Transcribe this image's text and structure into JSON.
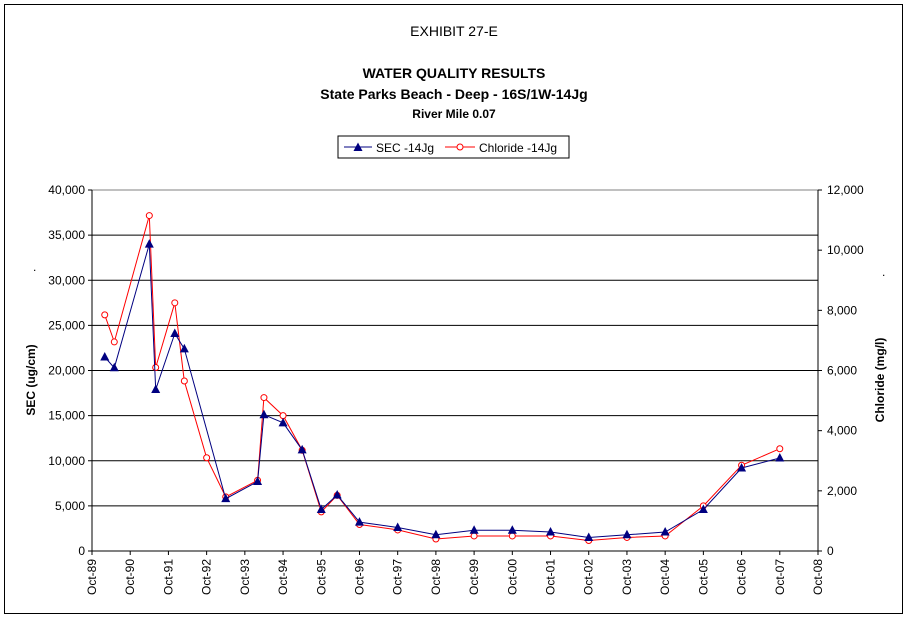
{
  "chart_data": {
    "type": "line",
    "exhibit": "EXHIBIT 27-E",
    "title": "WATER QUALITY RESULTS",
    "subtitle": "State Parks Beach - Deep - 16S/1W-14Jg",
    "subtitle2": "River Mile 0.07",
    "ylabel": "SEC (ug/cm)",
    "y2label": "Chloride (mg/l)",
    "ylabel_mark": ".",
    "y2label_mark": ".",
    "ylim": [
      0,
      40000
    ],
    "y2lim": [
      0,
      12000
    ],
    "xlim": [
      "1989-10",
      "2008-10"
    ],
    "grid": true,
    "legend_position": "top-center",
    "colors": {
      "sec": "#000080",
      "chloride": "#ff0000"
    },
    "x_tick_labels": [
      "Oct-89",
      "Oct-90",
      "Oct-91",
      "Oct-92",
      "Oct-93",
      "Oct-94",
      "Oct-95",
      "Oct-96",
      "Oct-97",
      "Oct-98",
      "Oct-99",
      "Oct-00",
      "Oct-01",
      "Oct-02",
      "Oct-03",
      "Oct-04",
      "Oct-05",
      "Oct-06",
      "Oct-07",
      "Oct-08"
    ],
    "y_tick_labels": [
      "0",
      "5,000",
      "10,000",
      "15,000",
      "20,000",
      "25,000",
      "30,000",
      "35,000",
      "40,000"
    ],
    "y2_tick_labels": [
      "0",
      "2,000",
      "4,000",
      "6,000",
      "8,000",
      "10,000",
      "12,000"
    ],
    "series": [
      {
        "name": "SEC -14Jg",
        "axis": "left",
        "marker": "triangle",
        "x": [
          "1990-02",
          "1990-05",
          "1991-04",
          "1991-06",
          "1991-12",
          "1992-03",
          "1993-04",
          "1994-02",
          "1994-04",
          "1994-10",
          "1995-04",
          "1995-10",
          "1996-03",
          "1996-10",
          "1997-10",
          "1998-10",
          "1999-10",
          "2000-10",
          "2001-10",
          "2002-10",
          "2003-10",
          "2004-10",
          "2005-10",
          "2006-10",
          "2007-10"
        ],
        "values": [
          21500,
          20300,
          34000,
          17900,
          24100,
          22400,
          5800,
          7700,
          15100,
          14200,
          11200,
          4600,
          6200,
          3200,
          2600,
          1800,
          2300,
          2300,
          2100,
          1500,
          1800,
          2100,
          4600,
          9200,
          10300
        ]
      },
      {
        "name": "Chloride -14Jg",
        "axis": "right",
        "marker": "circle",
        "x": [
          "1990-02",
          "1990-05",
          "1991-04",
          "1991-06",
          "1991-12",
          "1992-03",
          "1992-10",
          "1993-04",
          "1994-02",
          "1994-04",
          "1994-10",
          "1995-04",
          "1995-10",
          "1996-03",
          "1996-10",
          "1997-10",
          "1998-10",
          "1999-10",
          "2000-10",
          "2001-10",
          "2002-10",
          "2003-10",
          "2004-10",
          "2005-10",
          "2006-10",
          "2007-10"
        ],
        "values": [
          7850,
          6950,
          11150,
          6100,
          8250,
          5650,
          3100,
          1800,
          2350,
          5100,
          4500,
          3350,
          1300,
          1850,
          880,
          700,
          400,
          500,
          500,
          500,
          350,
          450,
          500,
          1500,
          2850,
          3400
        ]
      }
    ]
  }
}
